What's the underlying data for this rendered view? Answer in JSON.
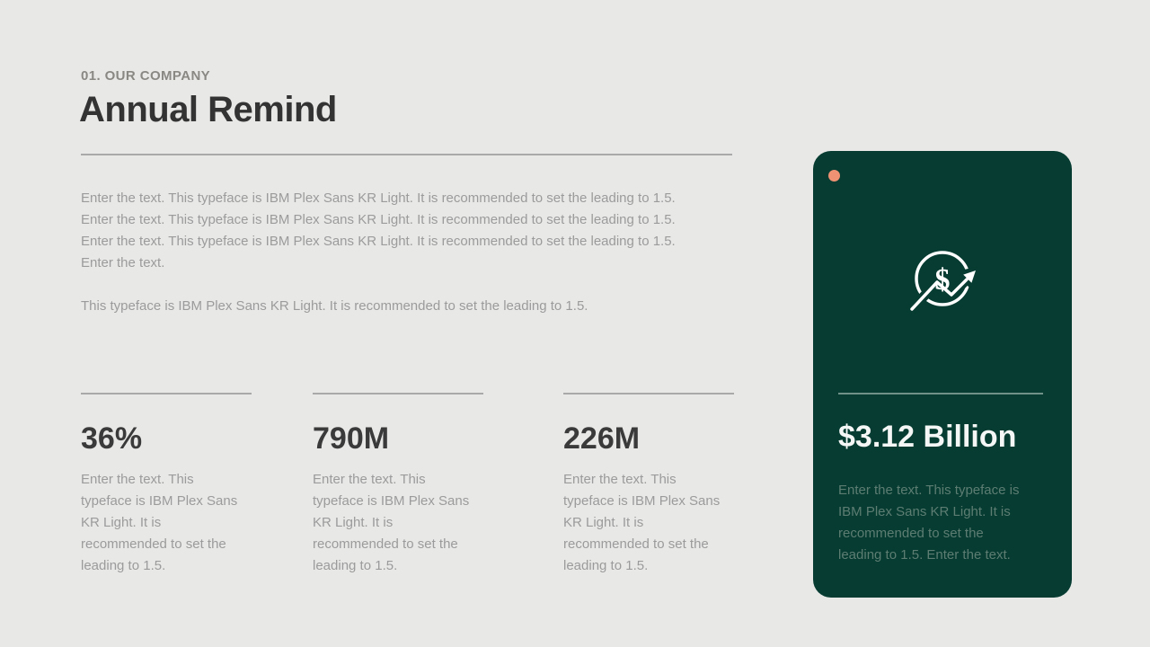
{
  "slide": {
    "background_color": "#e8e8e7",
    "header": {
      "eyebrow": "01. OUR COMPANY",
      "title": "Annual Remind"
    },
    "intro": {
      "lines": [
        "Enter the text. This typeface is IBM Plex Sans KR Light. It is recommended to set the leading to 1.5.",
        "Enter the text. This typeface is IBM Plex Sans KR Light. It is recommended to set the leading to 1.5.",
        "Enter the text. This typeface is IBM Plex Sans KR Light. It is recommended to set the leading to 1.5.",
        "Enter the text.",
        "",
        "This typeface is IBM Plex Sans KR Light. It is recommended to set the leading to 1.5."
      ]
    },
    "stats": [
      {
        "value": "36%",
        "description_lines": [
          "Enter the text. This",
          "typeface is IBM Plex Sans",
          "KR Light. It is",
          "recommended to set the",
          "leading to 1.5."
        ]
      },
      {
        "value": "790M",
        "description_lines": [
          "Enter the text. This",
          "typeface is IBM Plex Sans",
          "KR Light. It is",
          "recommended to set the",
          "leading to 1.5."
        ]
      },
      {
        "value": "226M",
        "description_lines": [
          "Enter the text. This",
          "typeface is IBM Plex Sans",
          "KR Light. It is",
          "recommended to set the",
          "leading to 1.5."
        ]
      }
    ],
    "highlight_card": {
      "background_color": "#063c31",
      "accent_dot_color": "#ef9273",
      "icon": "dollar-growth-icon",
      "value": "$3.12 Billion",
      "description_lines": [
        "Enter the text. This typeface is",
        "IBM Plex Sans KR Light. It is",
        "recommended to set the",
        "leading to 1.5. Enter the text."
      ]
    },
    "colors": {
      "title_text": "#333333",
      "eyebrow_text": "#8a8883",
      "body_text": "#9b9b9b",
      "divider": "#a9a9a9",
      "card_value_text": "#f4f7f5",
      "card_body_text": "#5d7d73"
    }
  }
}
